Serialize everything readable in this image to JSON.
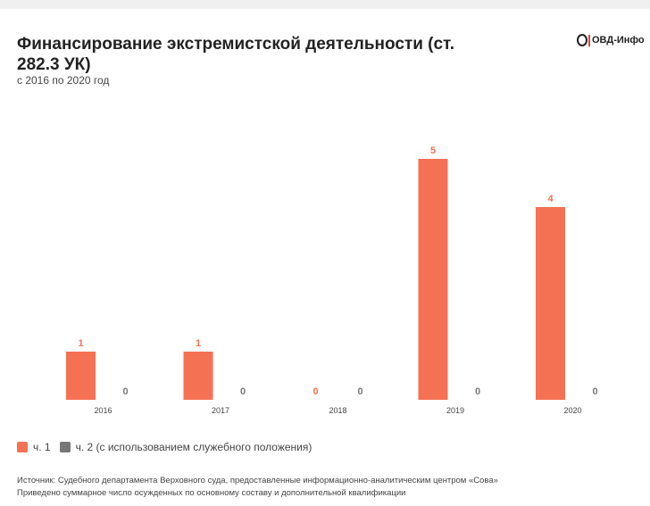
{
  "header": {
    "title": "Финансирование экстремистской деятельности (ст. 282.3 УК)",
    "subtitle": "с 2016 по 2020 год",
    "logo_text": "ОВД-Инфо"
  },
  "legend": {
    "items": [
      {
        "label": "ч. 1",
        "color": "#f47153"
      },
      {
        "label": "ч. 2 (с использованием служебного положения)",
        "color": "#777777"
      }
    ]
  },
  "footer": {
    "source": "Источник: Судебного департамента Верховного суда, предоставленные информационно-аналитическим центром «Сова»",
    "note": "Приведено суммарное число осужденных по основному составу и дополнительной квалификации"
  },
  "chart_data": {
    "type": "bar",
    "categories": [
      "2016",
      "2017",
      "2018",
      "2019",
      "2020"
    ],
    "series": [
      {
        "name": "ч. 1",
        "values": [
          1,
          1,
          0,
          5,
          4
        ],
        "color": "#f47153"
      },
      {
        "name": "ч. 2 (с использованием служебного положения)",
        "values": [
          0,
          0,
          0,
          0,
          0
        ],
        "color": "#777777"
      }
    ],
    "title": "Финансирование экстремистской деятельности (ст. 282.3 УК)",
    "xlabel": "",
    "ylabel": "",
    "ylim": [
      0,
      5
    ],
    "grid": false,
    "legend": "bottom-left"
  }
}
